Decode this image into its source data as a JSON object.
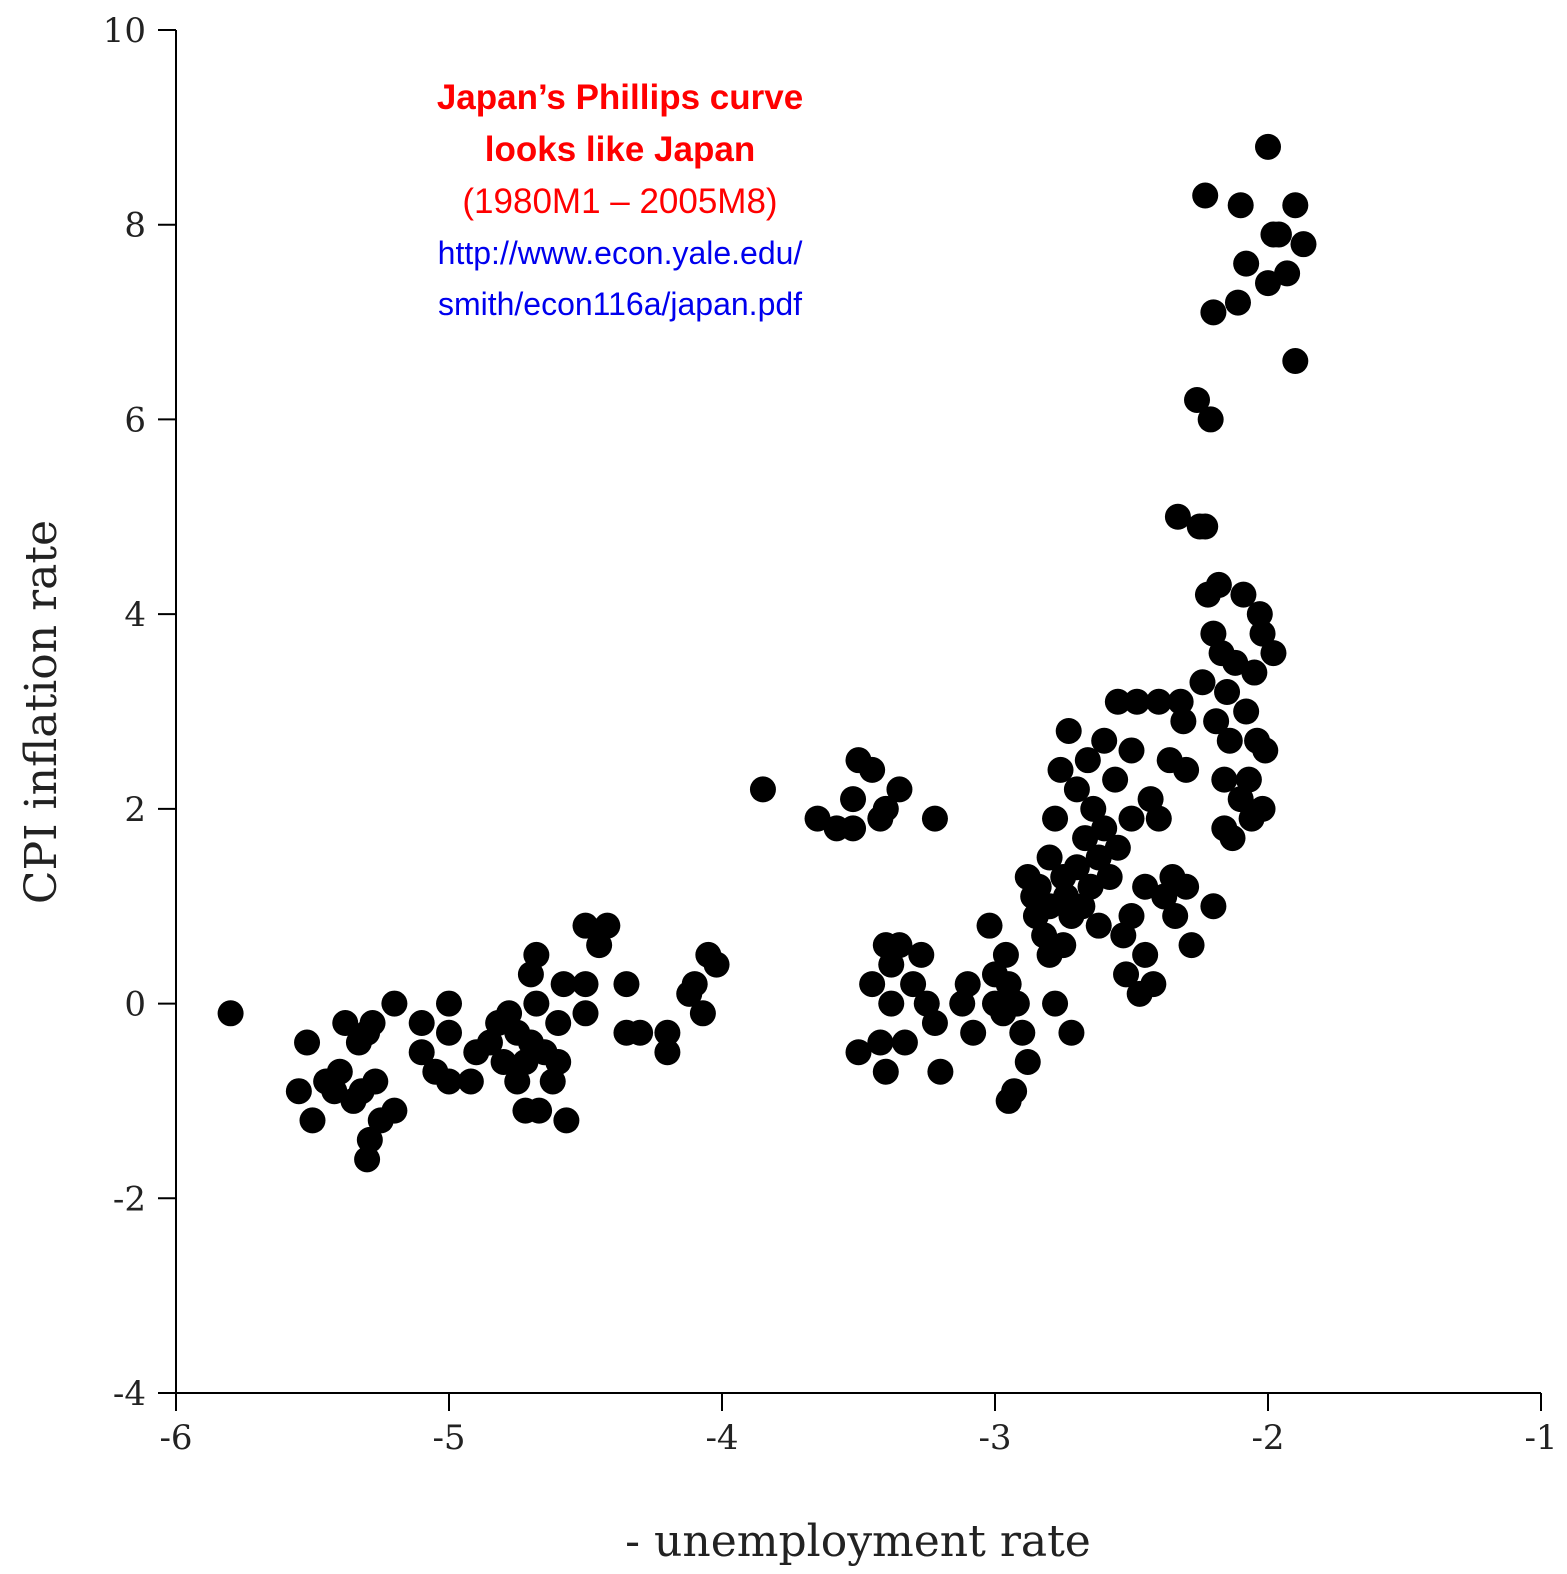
{
  "chart_data": {
    "type": "scatter",
    "xlabel": "- unemployment rate",
    "ylabel": "CPI inflation rate",
    "xlim": [
      -6,
      -1
    ],
    "ylim": [
      -4,
      10
    ],
    "xticks": [
      "-6",
      "-5",
      "-4",
      "-3",
      "-2",
      "-1"
    ],
    "yticks": [
      "-4",
      "-2",
      "0",
      "2",
      "4",
      "6",
      "8",
      "10"
    ],
    "grid": false,
    "legend": "none",
    "marker_color": "#000000",
    "annotation": {
      "title_line1": "Japan’s Phillips curve",
      "title_line2": "looks like Japan",
      "period": "(1980M1 – 2005M8)",
      "url_line1": "http://www.econ.yale.edu/",
      "url_line2": "smith/econ116a/japan.pdf",
      "title_color": "#ff0000",
      "url_color": "#0000ee"
    },
    "points": [
      [
        -5.8,
        -0.1
      ],
      [
        -5.55,
        -0.9
      ],
      [
        -5.52,
        -0.4
      ],
      [
        -5.5,
        -1.2
      ],
      [
        -5.45,
        -0.8
      ],
      [
        -5.42,
        -0.9
      ],
      [
        -5.4,
        -0.7
      ],
      [
        -5.38,
        -0.2
      ],
      [
        -5.35,
        -1.0
      ],
      [
        -5.33,
        -0.4
      ],
      [
        -5.32,
        -0.9
      ],
      [
        -5.3,
        -0.3
      ],
      [
        -5.3,
        -1.6
      ],
      [
        -5.29,
        -1.4
      ],
      [
        -5.28,
        -0.2
      ],
      [
        -5.27,
        -0.8
      ],
      [
        -5.25,
        -1.2
      ],
      [
        -5.2,
        -1.1
      ],
      [
        -5.2,
        0.0
      ],
      [
        -5.1,
        -0.2
      ],
      [
        -5.1,
        -0.5
      ],
      [
        -5.05,
        -0.7
      ],
      [
        -5.0,
        0.0
      ],
      [
        -5.0,
        -0.8
      ],
      [
        -5.0,
        -0.3
      ],
      [
        -4.92,
        -0.8
      ],
      [
        -4.9,
        -0.5
      ],
      [
        -4.85,
        -0.4
      ],
      [
        -4.82,
        -0.2
      ],
      [
        -4.8,
        -0.6
      ],
      [
        -4.78,
        -0.1
      ],
      [
        -4.75,
        -0.8
      ],
      [
        -4.75,
        -0.3
      ],
      [
        -4.72,
        -0.6
      ],
      [
        -4.72,
        -1.1
      ],
      [
        -4.7,
        0.3
      ],
      [
        -4.7,
        -0.4
      ],
      [
        -4.68,
        0.5
      ],
      [
        -4.68,
        0.0
      ],
      [
        -4.67,
        -1.1
      ],
      [
        -4.65,
        -0.5
      ],
      [
        -4.62,
        -0.8
      ],
      [
        -4.6,
        -0.2
      ],
      [
        -4.6,
        -0.6
      ],
      [
        -4.58,
        0.2
      ],
      [
        -4.57,
        -1.2
      ],
      [
        -4.5,
        -0.1
      ],
      [
        -4.5,
        0.2
      ],
      [
        -4.5,
        0.8
      ],
      [
        -4.45,
        0.6
      ],
      [
        -4.42,
        0.8
      ],
      [
        -4.35,
        0.2
      ],
      [
        -4.35,
        -0.3
      ],
      [
        -4.3,
        -0.3
      ],
      [
        -4.2,
        -0.3
      ],
      [
        -4.2,
        -0.5
      ],
      [
        -4.12,
        0.1
      ],
      [
        -4.1,
        0.2
      ],
      [
        -4.07,
        -0.1
      ],
      [
        -4.05,
        0.5
      ],
      [
        -4.02,
        0.4
      ],
      [
        -3.85,
        2.2
      ],
      [
        -3.65,
        1.9
      ],
      [
        -3.58,
        1.8
      ],
      [
        -3.52,
        1.8
      ],
      [
        -3.52,
        2.1
      ],
      [
        -3.5,
        2.5
      ],
      [
        -3.45,
        2.4
      ],
      [
        -3.42,
        1.9
      ],
      [
        -3.4,
        2.0
      ],
      [
        -3.35,
        2.2
      ],
      [
        -3.22,
        1.9
      ],
      [
        -3.5,
        -0.5
      ],
      [
        -3.45,
        0.2
      ],
      [
        -3.42,
        -0.4
      ],
      [
        -3.4,
        -0.7
      ],
      [
        -3.4,
        0.6
      ],
      [
        -3.38,
        0.4
      ],
      [
        -3.38,
        0.0
      ],
      [
        -3.35,
        0.6
      ],
      [
        -3.33,
        -0.4
      ],
      [
        -3.3,
        0.2
      ],
      [
        -3.27,
        0.5
      ],
      [
        -3.25,
        0.0
      ],
      [
        -3.22,
        -0.2
      ],
      [
        -3.2,
        -0.7
      ],
      [
        -3.12,
        0.0
      ],
      [
        -3.1,
        0.2
      ],
      [
        -3.08,
        -0.3
      ],
      [
        -3.02,
        0.8
      ],
      [
        -3.0,
        0.0
      ],
      [
        -3.0,
        0.3
      ],
      [
        -2.97,
        -0.1
      ],
      [
        -2.96,
        0.5
      ],
      [
        -2.95,
        0.2
      ],
      [
        -2.95,
        -1.0
      ],
      [
        -2.93,
        -0.9
      ],
      [
        -2.92,
        0.0
      ],
      [
        -2.9,
        -0.3
      ],
      [
        -2.88,
        -0.6
      ],
      [
        -2.88,
        1.3
      ],
      [
        -2.86,
        1.1
      ],
      [
        -2.85,
        0.9
      ],
      [
        -2.84,
        1.2
      ],
      [
        -2.82,
        0.7
      ],
      [
        -2.8,
        0.5
      ],
      [
        -2.8,
        1.0
      ],
      [
        -2.8,
        1.5
      ],
      [
        -2.78,
        0.0
      ],
      [
        -2.78,
        1.9
      ],
      [
        -2.76,
        2.4
      ],
      [
        -2.75,
        1.3
      ],
      [
        -2.75,
        0.6
      ],
      [
        -2.74,
        1.1
      ],
      [
        -2.73,
        2.8
      ],
      [
        -2.72,
        0.9
      ],
      [
        -2.72,
        -0.3
      ],
      [
        -2.7,
        1.4
      ],
      [
        -2.7,
        2.2
      ],
      [
        -2.68,
        1.0
      ],
      [
        -2.67,
        1.7
      ],
      [
        -2.66,
        2.5
      ],
      [
        -2.65,
        1.2
      ],
      [
        -2.64,
        2.0
      ],
      [
        -2.62,
        1.5
      ],
      [
        -2.62,
        0.8
      ],
      [
        -2.6,
        2.7
      ],
      [
        -2.6,
        1.8
      ],
      [
        -2.58,
        1.3
      ],
      [
        -2.56,
        2.3
      ],
      [
        -2.55,
        1.6
      ],
      [
        -2.55,
        3.1
      ],
      [
        -2.53,
        0.7
      ],
      [
        -2.52,
        0.3
      ],
      [
        -2.5,
        1.9
      ],
      [
        -2.5,
        0.9
      ],
      [
        -2.5,
        2.6
      ],
      [
        -2.48,
        3.1
      ],
      [
        -2.47,
        0.1
      ],
      [
        -2.45,
        0.5
      ],
      [
        -2.45,
        1.2
      ],
      [
        -2.43,
        2.1
      ],
      [
        -2.42,
        0.2
      ],
      [
        -2.4,
        3.1
      ],
      [
        -2.4,
        1.9
      ],
      [
        -2.38,
        1.1
      ],
      [
        -2.36,
        2.5
      ],
      [
        -2.35,
        1.3
      ],
      [
        -2.34,
        0.9
      ],
      [
        -2.33,
        5.0
      ],
      [
        -2.32,
        3.1
      ],
      [
        -2.31,
        2.9
      ],
      [
        -2.3,
        1.2
      ],
      [
        -2.3,
        2.4
      ],
      [
        -2.28,
        0.6
      ],
      [
        -2.26,
        6.2
      ],
      [
        -2.25,
        4.9
      ],
      [
        -2.24,
        3.3
      ],
      [
        -2.23,
        8.3
      ],
      [
        -2.23,
        4.9
      ],
      [
        -2.22,
        4.2
      ],
      [
        -2.21,
        6.0
      ],
      [
        -2.2,
        1.0
      ],
      [
        -2.2,
        7.1
      ],
      [
        -2.2,
        3.8
      ],
      [
        -2.19,
        2.9
      ],
      [
        -2.18,
        4.3
      ],
      [
        -2.17,
        3.6
      ],
      [
        -2.16,
        2.3
      ],
      [
        -2.16,
        1.8
      ],
      [
        -2.15,
        3.2
      ],
      [
        -2.14,
        2.7
      ],
      [
        -2.13,
        1.7
      ],
      [
        -2.12,
        3.5
      ],
      [
        -2.11,
        7.2
      ],
      [
        -2.1,
        8.2
      ],
      [
        -2.1,
        2.1
      ],
      [
        -2.09,
        4.2
      ],
      [
        -2.08,
        7.6
      ],
      [
        -2.08,
        3.0
      ],
      [
        -2.07,
        2.3
      ],
      [
        -2.06,
        1.9
      ],
      [
        -2.05,
        3.4
      ],
      [
        -2.04,
        2.7
      ],
      [
        -2.03,
        4.0
      ],
      [
        -2.02,
        3.8
      ],
      [
        -2.02,
        2.0
      ],
      [
        -2.01,
        2.6
      ],
      [
        -2.0,
        8.8
      ],
      [
        -2.0,
        7.4
      ],
      [
        -1.98,
        3.6
      ],
      [
        -1.98,
        7.9
      ],
      [
        -1.96,
        7.9
      ],
      [
        -1.93,
        7.5
      ],
      [
        -1.9,
        8.2
      ],
      [
        -1.9,
        6.6
      ],
      [
        -1.87,
        7.8
      ]
    ]
  }
}
